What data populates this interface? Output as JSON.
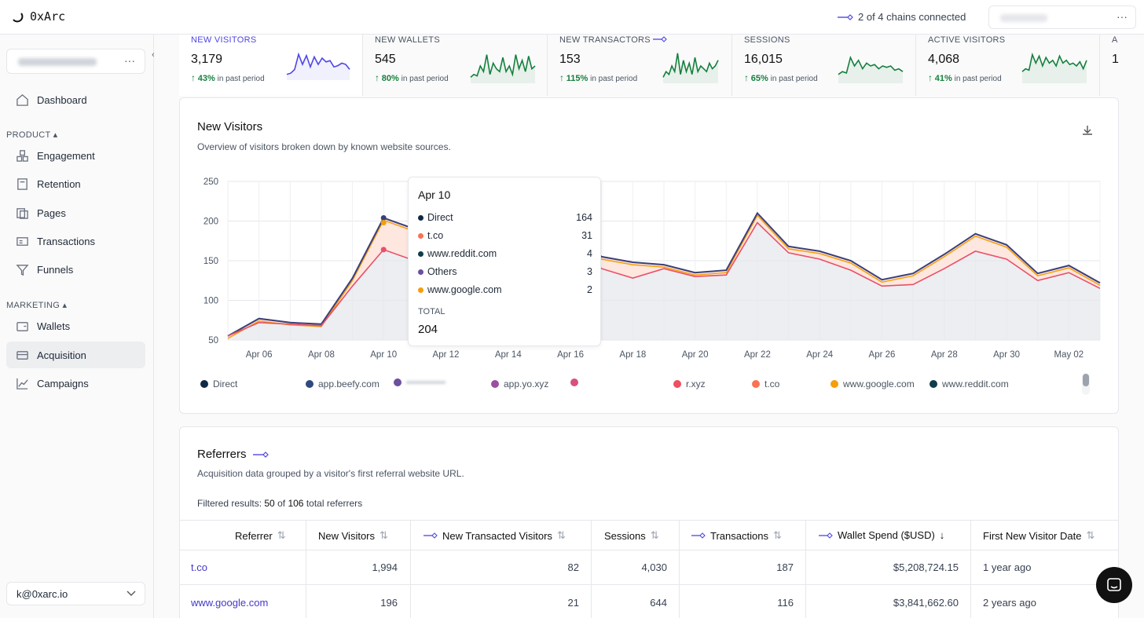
{
  "app": {
    "name": "0xArc"
  },
  "topbar": {
    "chains_status": "2 of 4 chains connected",
    "more_label": "···"
  },
  "sidebar": {
    "workspace_more": "···",
    "dashboard": "Dashboard",
    "product_section": "PRODUCT",
    "product_items": [
      "Engagement",
      "Retention",
      "Pages",
      "Transactions",
      "Funnels"
    ],
    "marketing_section": "MARKETING",
    "marketing_items": [
      "Wallets",
      "Acquisition",
      "Campaigns"
    ],
    "active_item": "Acquisition",
    "user_email": "k@0xarc.io"
  },
  "kpis": [
    {
      "label": "NEW VISITORS",
      "value": "3,179",
      "change": "43%",
      "period": "in past period",
      "color": "#4f46e5",
      "spark": [
        0.1,
        0.15,
        0.3,
        0.9,
        0.5,
        0.85,
        0.4,
        0.8,
        0.5,
        0.75,
        0.6,
        0.65,
        0.4,
        0.45,
        0.55,
        0.5,
        0.3
      ]
    },
    {
      "label": "NEW WALLETS",
      "value": "545",
      "change": "80%",
      "period": "in past period",
      "color": "#15803d",
      "spark": [
        0.1,
        0.2,
        0.15,
        0.5,
        0.3,
        0.9,
        0.2,
        0.6,
        0.4,
        0.3,
        0.8,
        0.3,
        0.5,
        0.2,
        0.9,
        0.4,
        0.7,
        0.3,
        0.85,
        0.4,
        0.5
      ]
    },
    {
      "label": "NEW TRANSACTORS",
      "value": "153",
      "change": "115%",
      "period": "in past period",
      "color": "#15803d",
      "spark": [
        0.1,
        0.3,
        0.2,
        0.5,
        0.3,
        0.95,
        0.2,
        0.7,
        0.3,
        0.6,
        0.2,
        0.8,
        0.3,
        0.5,
        0.4,
        0.3,
        0.6,
        0.4,
        0.5,
        0.7
      ]
    },
    {
      "label": "SESSIONS",
      "value": "16,015",
      "change": "65%",
      "period": "in past period",
      "color": "#15803d",
      "spark": [
        0.2,
        0.3,
        0.25,
        0.8,
        0.5,
        0.7,
        0.4,
        0.6,
        0.5,
        0.55,
        0.4,
        0.5,
        0.45,
        0.5,
        0.35,
        0.4,
        0.3
      ]
    },
    {
      "label": "ACTIVE VISITORS",
      "value": "4,068",
      "change": "41%",
      "period": "in past period",
      "color": "#15803d",
      "spark": [
        0.3,
        0.4,
        0.35,
        0.9,
        0.6,
        0.85,
        0.5,
        0.8,
        0.6,
        0.7,
        0.5,
        0.85,
        0.6,
        0.7,
        0.55,
        0.6,
        0.5,
        0.65,
        0.4,
        0.7
      ]
    },
    {
      "label": "A",
      "value": "1",
      "change": "",
      "period": "",
      "color": "#15803d",
      "spark": []
    }
  ],
  "chart": {
    "title": "New Visitors",
    "subtitle": "Overview of visitors broken down by known website sources.",
    "y_ticks": [
      "250",
      "200",
      "150",
      "100",
      "50"
    ],
    "x_ticks": [
      "Apr 06",
      "Apr 08",
      "Apr 10",
      "Apr 12",
      "Apr 14",
      "Apr 16",
      "Apr 18",
      "Apr 20",
      "Apr 22",
      "Apr 24",
      "Apr 26",
      "Apr 28",
      "Apr 30",
      "May 02"
    ],
    "tooltip": {
      "date": "Apr 10",
      "rows": [
        {
          "name": "Direct",
          "value": "164",
          "color": "#0f2a44"
        },
        {
          "name": "t.co",
          "value": "31",
          "color": "#f97352"
        },
        {
          "name": "www.reddit.com",
          "value": "4",
          "color": "#0f3d4a"
        },
        {
          "name": "Others",
          "value": "3",
          "color": "#6b4fa0"
        },
        {
          "name": "www.google.com",
          "value": "2",
          "color": "#f59e0b"
        }
      ],
      "total_label": "TOTAL",
      "total_value": "204"
    },
    "legend": [
      {
        "name": "Direct",
        "color": "#0f2a44"
      },
      {
        "name": "app.beefy.com",
        "color": "#2e4a7f"
      },
      {
        "name": "",
        "color": "#6b4fa0"
      },
      {
        "name": "app.yo.xyz",
        "color": "#9b4fa0"
      },
      {
        "name": "",
        "color": "#d94f80"
      },
      {
        "name": "r.xyz",
        "color": "#ef4f5f"
      },
      {
        "name": "t.co",
        "color": "#f97352"
      },
      {
        "name": "www.google.com",
        "color": "#f59e0b"
      },
      {
        "name": "www.reddit.com",
        "color": "#0f3d4a"
      }
    ]
  },
  "chart_data": {
    "type": "area",
    "title": "New Visitors",
    "x": [
      "Apr 05",
      "Apr 06",
      "Apr 07",
      "Apr 08",
      "Apr 09",
      "Apr 10",
      "Apr 11",
      "Apr 12",
      "Apr 13",
      "Apr 14",
      "Apr 15",
      "Apr 16",
      "Apr 17",
      "Apr 18",
      "Apr 19",
      "Apr 20",
      "Apr 21",
      "Apr 22",
      "Apr 23",
      "Apr 24",
      "Apr 25",
      "Apr 26",
      "Apr 27",
      "Apr 28",
      "Apr 29",
      "Apr 30",
      "May 01",
      "May 02",
      "May 03"
    ],
    "series": [
      {
        "name": "Direct",
        "values": [
          55,
          72,
          70,
          68,
          118,
          164,
          150,
          160,
          175,
          178,
          185,
          180,
          140,
          128,
          140,
          130,
          132,
          198,
          160,
          152,
          138,
          118,
          120,
          140,
          162,
          152,
          125,
          135,
          115
        ]
      },
      {
        "name": "Total",
        "values": [
          55,
          77,
          72,
          70,
          128,
          204,
          190,
          185,
          192,
          195,
          198,
          188,
          155,
          148,
          145,
          135,
          138,
          210,
          168,
          162,
          150,
          126,
          134,
          158,
          184,
          170,
          134,
          144,
          122
        ]
      }
    ],
    "ylim": [
      50,
      250
    ]
  },
  "referrers": {
    "title": "Referrers",
    "subtitle": "Acquisition data grouped by a visitor's first referral website URL.",
    "filter_prefix": "Filtered results:",
    "filter_count": "50",
    "filter_of": "of",
    "filter_total": "106",
    "filter_suffix": "total referrers",
    "columns": [
      "Referrer",
      "New Visitors",
      "New Transacted Visitors",
      "Sessions",
      "Transactions",
      "Wallet Spend ($USD)",
      "First New Visitor Date"
    ],
    "rows": [
      [
        "t.co",
        "1,994",
        "82",
        "4,030",
        "187",
        "$5,208,724.15",
        "1 year ago"
      ],
      [
        "www.google.com",
        "196",
        "21",
        "644",
        "116",
        "$3,841,662.60",
        "2 years ago"
      ]
    ]
  }
}
